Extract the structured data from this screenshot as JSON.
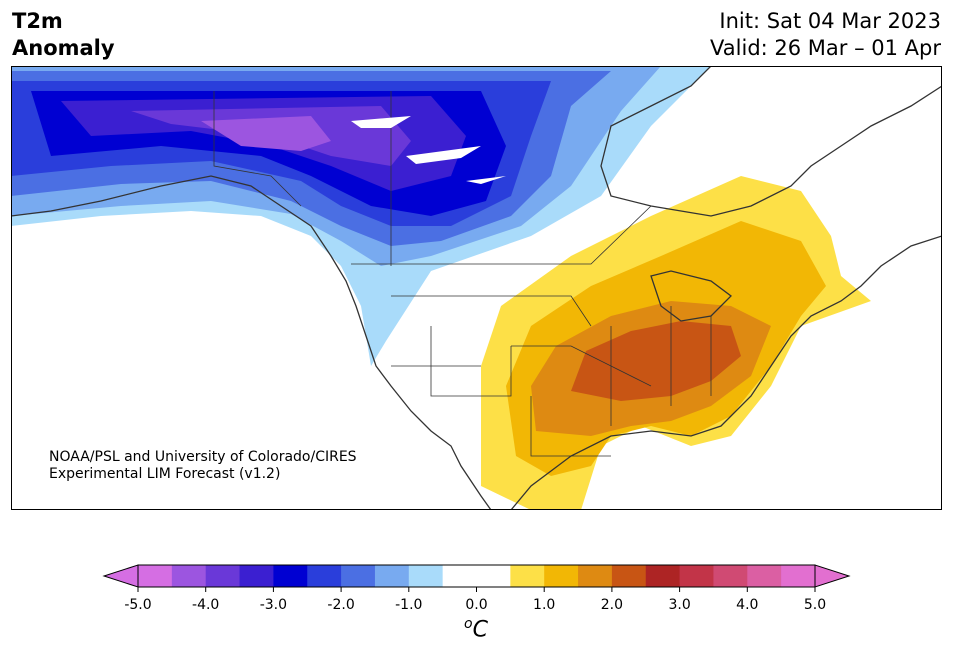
{
  "header": {
    "title_line1": "T2m",
    "title_line2": "Anomaly",
    "init": "Init: Sat 04 Mar 2023",
    "valid": "Valid: 26 Mar – 01 Apr"
  },
  "credit": {
    "line1": "NOAA/PSL and University of Colorado/CIRES",
    "line2": "Experimental LIM Forecast (v1.2)"
  },
  "colorbar": {
    "unit_sup": "o",
    "unit": "C",
    "ticks": [
      "-5.0",
      "-4.0",
      "-3.0",
      "-2.0",
      "-1.0",
      "0.0",
      "1.0",
      "2.0",
      "3.0",
      "4.0",
      "5.0"
    ],
    "colors": [
      "#d56ee3",
      "#9c55e0",
      "#6a38d8",
      "#3b1fd1",
      "#0000d2",
      "#2a3edb",
      "#4b6fe3",
      "#78aaf0",
      "#a9dbfa",
      "#ffffff",
      "#ffffff",
      "#fde047",
      "#f2b705",
      "#de8a12",
      "#c85514",
      "#ad2424",
      "#c23448",
      "#d04a73",
      "#db5fa3",
      "#e26fd0"
    ],
    "min_extend_color": "#d56ee3",
    "max_extend_color": "#e26fd0"
  }
}
